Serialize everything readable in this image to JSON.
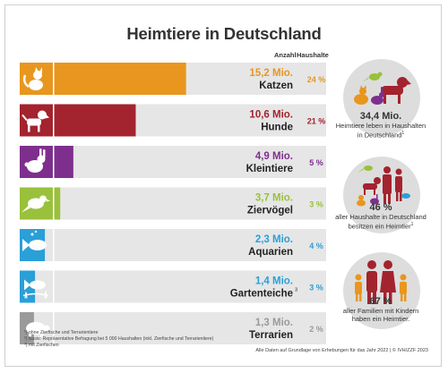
{
  "title": "Heimtiere in Deutschland",
  "columns": {
    "anzahl": "Anzahl",
    "haushalte": "Haushalte"
  },
  "chart_data": {
    "type": "bar",
    "categories": [
      "Katzen",
      "Hunde",
      "Kleintiere",
      "Ziervögel",
      "Aquarien",
      "Gartenteiche",
      "Terrarien"
    ],
    "values_mio": [
      15.2,
      10.6,
      4.9,
      3.7,
      2.3,
      1.4,
      1.3
    ],
    "value_labels": [
      "15,2 Mio.",
      "10,6 Mio.",
      "4,9 Mio.",
      "3,7 Mio.",
      "2,3 Mio.",
      "1,4 Mio.",
      "1,3 Mio."
    ],
    "haushalte": [
      "24 %",
      "21 %",
      "5 %",
      "3 %",
      "4 %",
      "3 %",
      "2 %"
    ],
    "category_notes": [
      "",
      "",
      "",
      "",
      "",
      "3",
      ""
    ],
    "icons": [
      "cat-icon",
      "dog-icon",
      "rabbit-icon",
      "bird-icon",
      "fish-icon",
      "pond-fish-icon",
      "turtle-icon"
    ],
    "colors": [
      "#E8961E",
      "#A3232E",
      "#7E2F8E",
      "#99C13B",
      "#2A9FD8",
      "#2A9FD8",
      "#9A9A9A"
    ],
    "xlim": [
      0,
      28
    ]
  },
  "side": {
    "total_value": "34,4 Mio.",
    "total_text_1": "Heimtiere leben in Haushalten",
    "total_text_2": "in Deutschland",
    "total_note": "1",
    "households_value": "46 %",
    "households_text_1": "aller Haushalte in Deutschland",
    "households_text_2": "besitzen ein Heimtier",
    "households_note": "1",
    "families_value": "67 %",
    "families_text_1": "aller Familien mit Kindern",
    "families_text_2": "haben ein Heimtier.",
    "icon_1": "pets-group-icon",
    "icon_2": "pets-and-people-icon",
    "icon_3": "family-icon"
  },
  "footnotes": {
    "f1": "¹) ohne Zierfische und Terrarientiere",
    "f2": "²) Basis: Repräsentative Befragung bei 5 000 Haushalten (inkl. Zierfische und Terrarientiere)",
    "f3": "³) mit Zierfischen"
  },
  "credit": "Alle Daten auf Grundlage von Erhebungen für das Jahr 2022 | © IVH/ZZF 2023"
}
